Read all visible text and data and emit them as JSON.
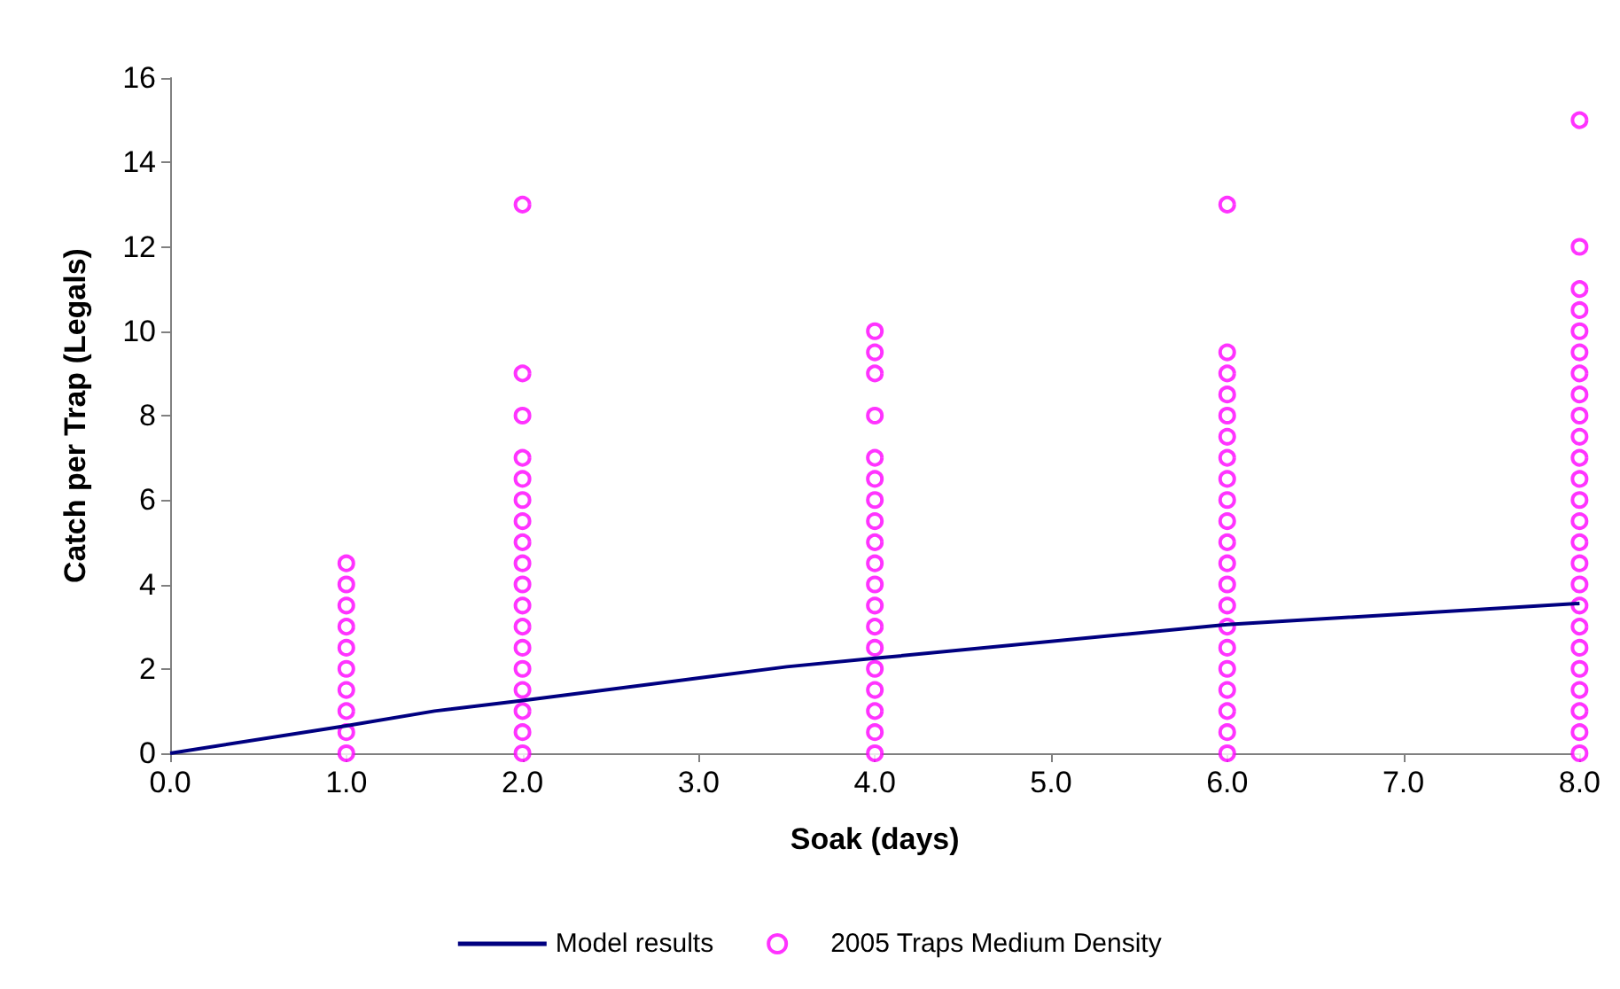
{
  "chart_data": {
    "type": "scatter",
    "xlabel": "Soak (days)",
    "ylabel": "Catch per Trap (Legals)",
    "xlim": [
      0,
      8
    ],
    "xticks": [
      {
        "value": 0,
        "label": "0.0"
      },
      {
        "value": 1,
        "label": "1.0"
      },
      {
        "value": 2,
        "label": "2.0"
      },
      {
        "value": 3,
        "label": "3.0"
      },
      {
        "value": 4,
        "label": "4.0"
      },
      {
        "value": 5,
        "label": "5.0"
      },
      {
        "value": 6,
        "label": "6.0"
      },
      {
        "value": 7,
        "label": "7.0"
      },
      {
        "value": 8,
        "label": "8.0"
      }
    ],
    "ylim": [
      0,
      16
    ],
    "yticks": [
      0,
      2,
      4,
      6,
      8,
      10,
      12,
      14,
      16
    ],
    "grid": false,
    "legend": "bottom",
    "series": [
      {
        "name": "Model results",
        "type": "line",
        "color": "#000080",
        "marker": "none",
        "line_style": "solid",
        "x": [
          0,
          1,
          1.5,
          2,
          3.5,
          4,
          6,
          8
        ],
        "values": [
          0,
          0.65,
          1,
          1.25,
          2.05,
          2.25,
          3.05,
          3.55
        ]
      },
      {
        "name": "2005 Traps Medium Density",
        "color": "#ff00ff",
        "marker": "circle",
        "x": [
          1,
          1,
          1,
          1,
          1,
          1,
          1,
          1,
          1,
          1,
          2,
          2,
          2,
          2,
          2,
          2,
          2,
          2,
          2,
          2,
          2,
          2,
          2,
          2,
          2,
          2,
          2,
          2,
          4,
          4,
          4,
          4,
          4,
          4,
          4,
          4,
          4,
          4,
          4,
          4,
          4,
          4,
          4,
          4,
          4,
          4,
          4,
          6,
          6,
          6,
          6,
          6,
          6,
          6,
          6,
          6,
          6,
          6,
          6,
          6,
          6,
          6,
          6,
          6,
          6,
          6,
          6,
          6,
          8,
          8,
          8,
          8,
          8,
          8,
          8,
          8,
          8,
          8,
          8,
          8,
          8,
          8,
          8,
          8,
          8,
          8,
          8,
          8,
          8,
          8,
          8,
          8,
          8
        ],
        "values": [
          0,
          0.5,
          1,
          1.5,
          2,
          2.5,
          3,
          3.5,
          4,
          4.5,
          0,
          0.5,
          1,
          1.5,
          2,
          2.5,
          3,
          3.5,
          4,
          4.5,
          5,
          5.5,
          6,
          6.5,
          7,
          8,
          9,
          13,
          0,
          0.5,
          1,
          1.5,
          2,
          2.5,
          3,
          3.5,
          4,
          4.5,
          5,
          5.5,
          6,
          6.5,
          7,
          8,
          9,
          9.5,
          10,
          0,
          0.5,
          1,
          1.5,
          2,
          2.5,
          3,
          3.5,
          4,
          4.5,
          5,
          5.5,
          6,
          6.5,
          7,
          7.5,
          8,
          8.5,
          9,
          9.5,
          13,
          0,
          0.5,
          1,
          1.5,
          2,
          2.5,
          3,
          3.5,
          4,
          4.5,
          5,
          5.5,
          6,
          6.5,
          7,
          7.5,
          8,
          8.5,
          9,
          9.5,
          10,
          10.5,
          11,
          12,
          15
        ]
      }
    ]
  }
}
